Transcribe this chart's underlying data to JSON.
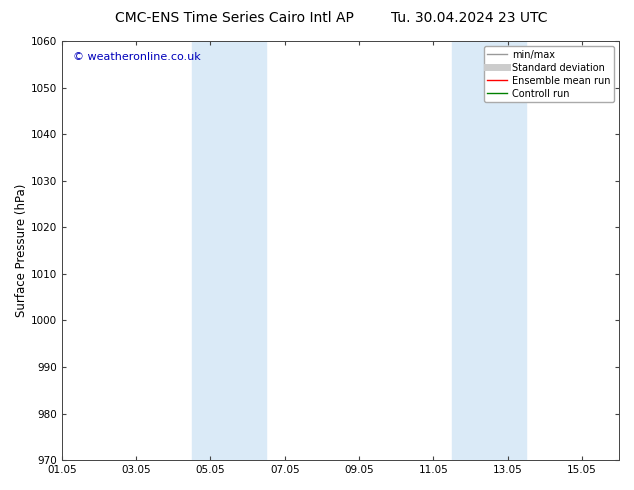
{
  "title_left": "CMC-ENS Time Series Cairo Intl AP",
  "title_right": "Tu. 30.04.2024 23 UTC",
  "ylabel": "Surface Pressure (hPa)",
  "ylim": [
    970,
    1060
  ],
  "yticks": [
    970,
    980,
    990,
    1000,
    1010,
    1020,
    1030,
    1040,
    1050,
    1060
  ],
  "xlim_start": 0,
  "xlim_end": 15,
  "xtick_labels": [
    "01.05",
    "03.05",
    "05.05",
    "07.05",
    "09.05",
    "11.05",
    "13.05",
    "15.05"
  ],
  "xtick_positions": [
    0,
    2,
    4,
    6,
    8,
    10,
    12,
    14
  ],
  "shaded_bands": [
    {
      "xmin": 3.5,
      "xmax": 5.5
    },
    {
      "xmin": 10.5,
      "xmax": 12.5
    }
  ],
  "band_color": "#daeaf7",
  "watermark": "© weatheronline.co.uk",
  "watermark_color": "#0000bb",
  "watermark_fontsize": 8,
  "legend_entries": [
    {
      "label": "min/max",
      "color": "#999999",
      "lw": 1.0
    },
    {
      "label": "Standard deviation",
      "color": "#cccccc",
      "lw": 5.0
    },
    {
      "label": "Ensemble mean run",
      "color": "#ff0000",
      "lw": 1.0
    },
    {
      "label": "Controll run",
      "color": "#008000",
      "lw": 1.0
    }
  ],
  "title_fontsize": 10,
  "tick_fontsize": 7.5,
  "ylabel_fontsize": 8.5,
  "bg_color": "#ffffff",
  "plot_bg_color": "#ffffff",
  "axes_color": "#000000",
  "legend_fontsize": 7,
  "legend_edge_color": "#aaaaaa"
}
